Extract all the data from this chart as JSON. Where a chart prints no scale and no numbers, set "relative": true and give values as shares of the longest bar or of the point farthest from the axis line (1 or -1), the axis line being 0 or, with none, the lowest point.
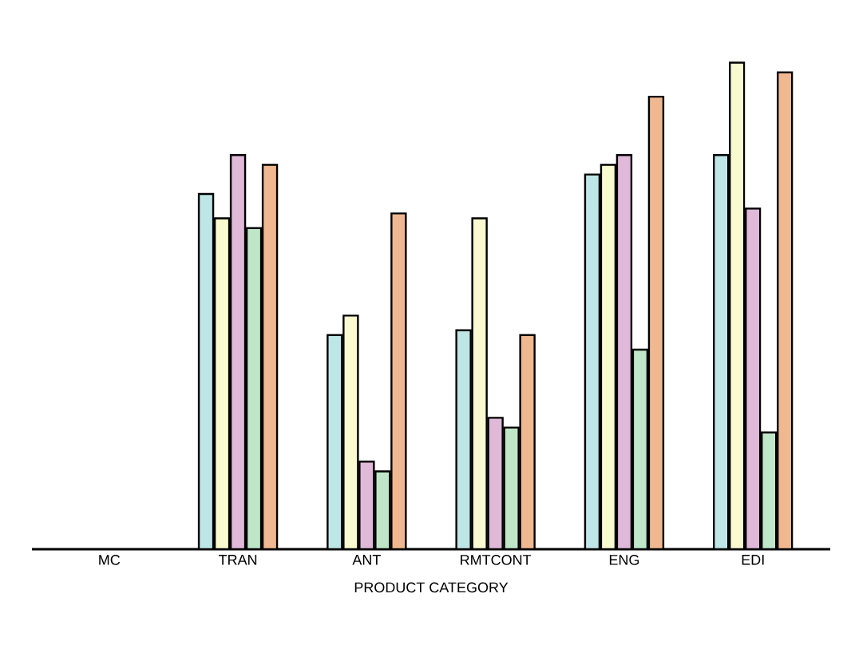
{
  "chart_data": {
    "type": "bar",
    "relative": true,
    "xlabel": "PRODUCT CATEGORY",
    "categories": [
      "MC",
      "TRAN",
      "ANT",
      "RMTCONT",
      "ENG",
      "EDI"
    ],
    "series": [
      {
        "color": "#bfe6e6",
        "values": [
          null,
          0.73,
          0.44,
          0.45,
          0.77,
          0.81
        ]
      },
      {
        "color": "#fafad0",
        "values": [
          null,
          0.68,
          0.48,
          0.68,
          0.79,
          1
        ]
      },
      {
        "color": "#e0b8d8",
        "values": [
          null,
          0.81,
          0.18,
          0.27,
          0.81,
          0.7
        ]
      },
      {
        "color": "#bfe6c8",
        "values": [
          null,
          0.66,
          0.16,
          0.25,
          0.41,
          0.24
        ]
      },
      {
        "color": "#f0b890",
        "values": [
          null,
          0.79,
          0.69,
          0.44,
          0.93,
          0.98
        ]
      }
    ]
  }
}
